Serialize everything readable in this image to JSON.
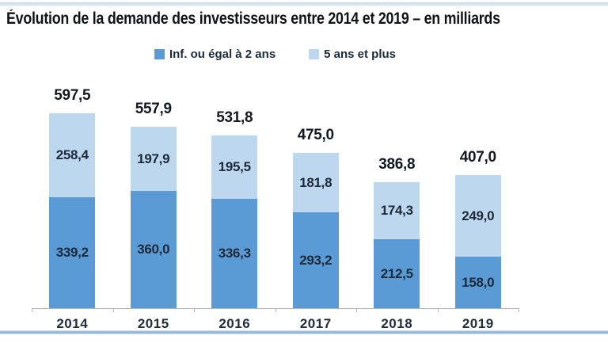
{
  "page": {
    "title": "Évolution de la demande des investisseurs entre 2014 et 2019 – en milliards"
  },
  "legend": {
    "items": [
      {
        "label": "Inf. ou égal à 2 ans",
        "color": "#5b9bd5"
      },
      {
        "label": "5 ans et plus",
        "color": "#bdd7ee"
      }
    ]
  },
  "chart_data": {
    "type": "bar",
    "stacked": true,
    "title": "Évolution de la demande des investisseurs entre 2014 et 2019 – en milliards",
    "categories": [
      "2014",
      "2015",
      "2016",
      "2017",
      "2018",
      "2019"
    ],
    "series": [
      {
        "name": "Inf. ou égal à 2 ans",
        "color": "#5b9bd5",
        "values": [
          339.2,
          360.0,
          336.3,
          293.2,
          212.5,
          158.0
        ],
        "labels": [
          "339,2",
          "360,0",
          "336,3",
          "293,2",
          "212,5",
          "158,0"
        ]
      },
      {
        "name": "5 ans et plus",
        "color": "#bdd7ee",
        "values": [
          258.4,
          197.9,
          195.5,
          181.8,
          174.3,
          249.0
        ],
        "labels": [
          "258,4",
          "197,9",
          "195,5",
          "181,8",
          "174,3",
          "249,0"
        ]
      }
    ],
    "totals": [
      597.5,
      557.9,
      531.8,
      475.0,
      386.8,
      407.0
    ],
    "totals_labels": [
      "597,5",
      "557,9",
      "531,8",
      "475,0",
      "386,8",
      "407,0"
    ],
    "ylim": [
      0,
      650
    ],
    "grid": false,
    "legend_position": "top",
    "xlabel": "",
    "ylabel": ""
  }
}
